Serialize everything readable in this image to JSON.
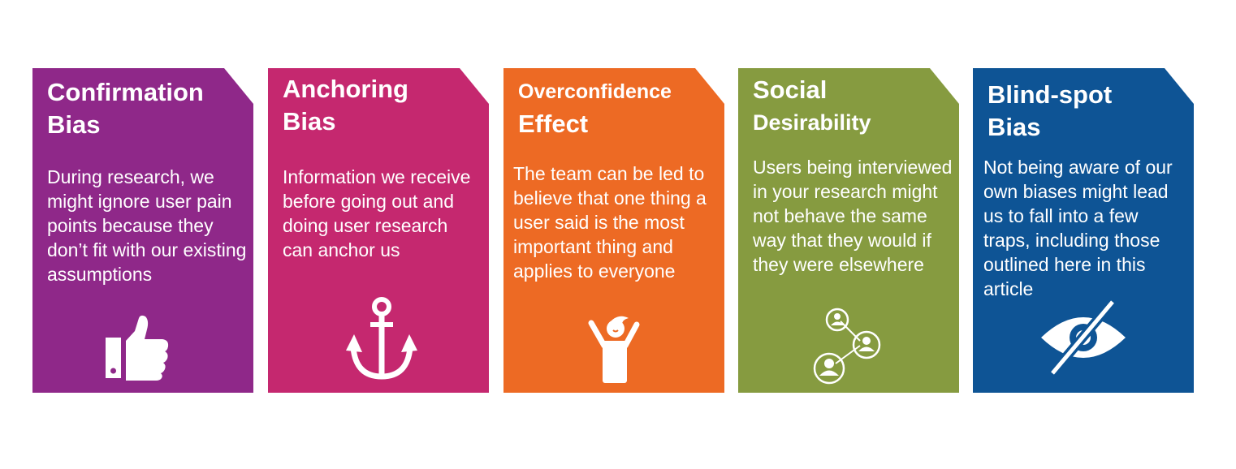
{
  "cards": [
    {
      "title_line1": "Confirmation",
      "title_line2": "Bias",
      "body": "During research, we might ignore user pain points because they don’t fit with our existing assumptions",
      "icon": "thumbs-up-icon",
      "color": "#8f2889"
    },
    {
      "title_line1": "Anchoring",
      "title_line2": "Bias",
      "body": "Information we receive before going out and doing user research can anchor us",
      "icon": "anchor-icon",
      "color": "#c5286f"
    },
    {
      "title_line1": "Overconfidence",
      "title_line2": "Effect",
      "body": "The team can be led to believe that one thing a user said is the most important thing and applies to everyone",
      "icon": "celebrating-person-icon",
      "color": "#ed6a24"
    },
    {
      "title_line1": "Social",
      "title_line2": "Desirability",
      "body": "Users being interviewed in your research might not behave the same way that they would if they were elsewhere",
      "icon": "people-network-icon",
      "color": "#869b40"
    },
    {
      "title_line1": "Blind-spot",
      "title_line2": "Bias",
      "body": "Not being aware of our own biases might lead us to fall into a few traps, including those outlined here in this article",
      "icon": "eye-slash-icon",
      "color": "#0e5495"
    }
  ]
}
